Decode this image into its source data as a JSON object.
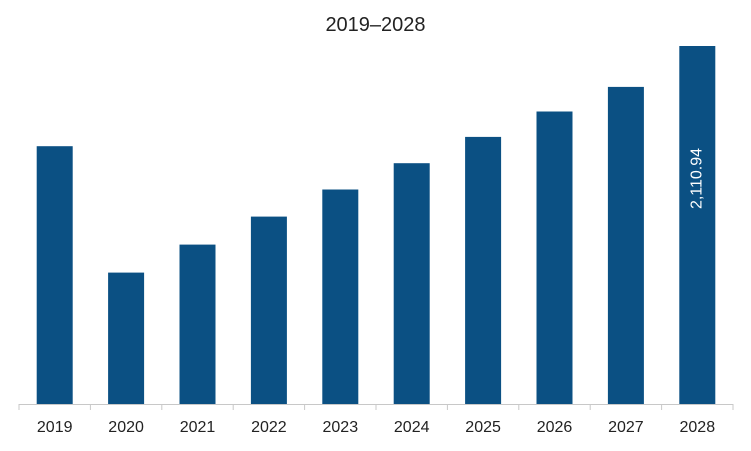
{
  "chart_data": {
    "type": "bar",
    "title": "2019–2028",
    "xlabel": "",
    "ylabel": "",
    "categories": [
      "2019",
      "2020",
      "2021",
      "2022",
      "2023",
      "2024",
      "2025",
      "2026",
      "2027",
      "2028"
    ],
    "values": [
      1520,
      775,
      940,
      1105,
      1265,
      1420,
      1575,
      1725,
      1870,
      2110.94
    ],
    "ylim": [
      0,
      2110.94
    ],
    "grid": false,
    "legend": "none",
    "bar_color": "#0b5083",
    "axis_color": "#c8c8c8",
    "data_labels": [
      {
        "category": "2028",
        "text": "2,110.94"
      }
    ]
  }
}
